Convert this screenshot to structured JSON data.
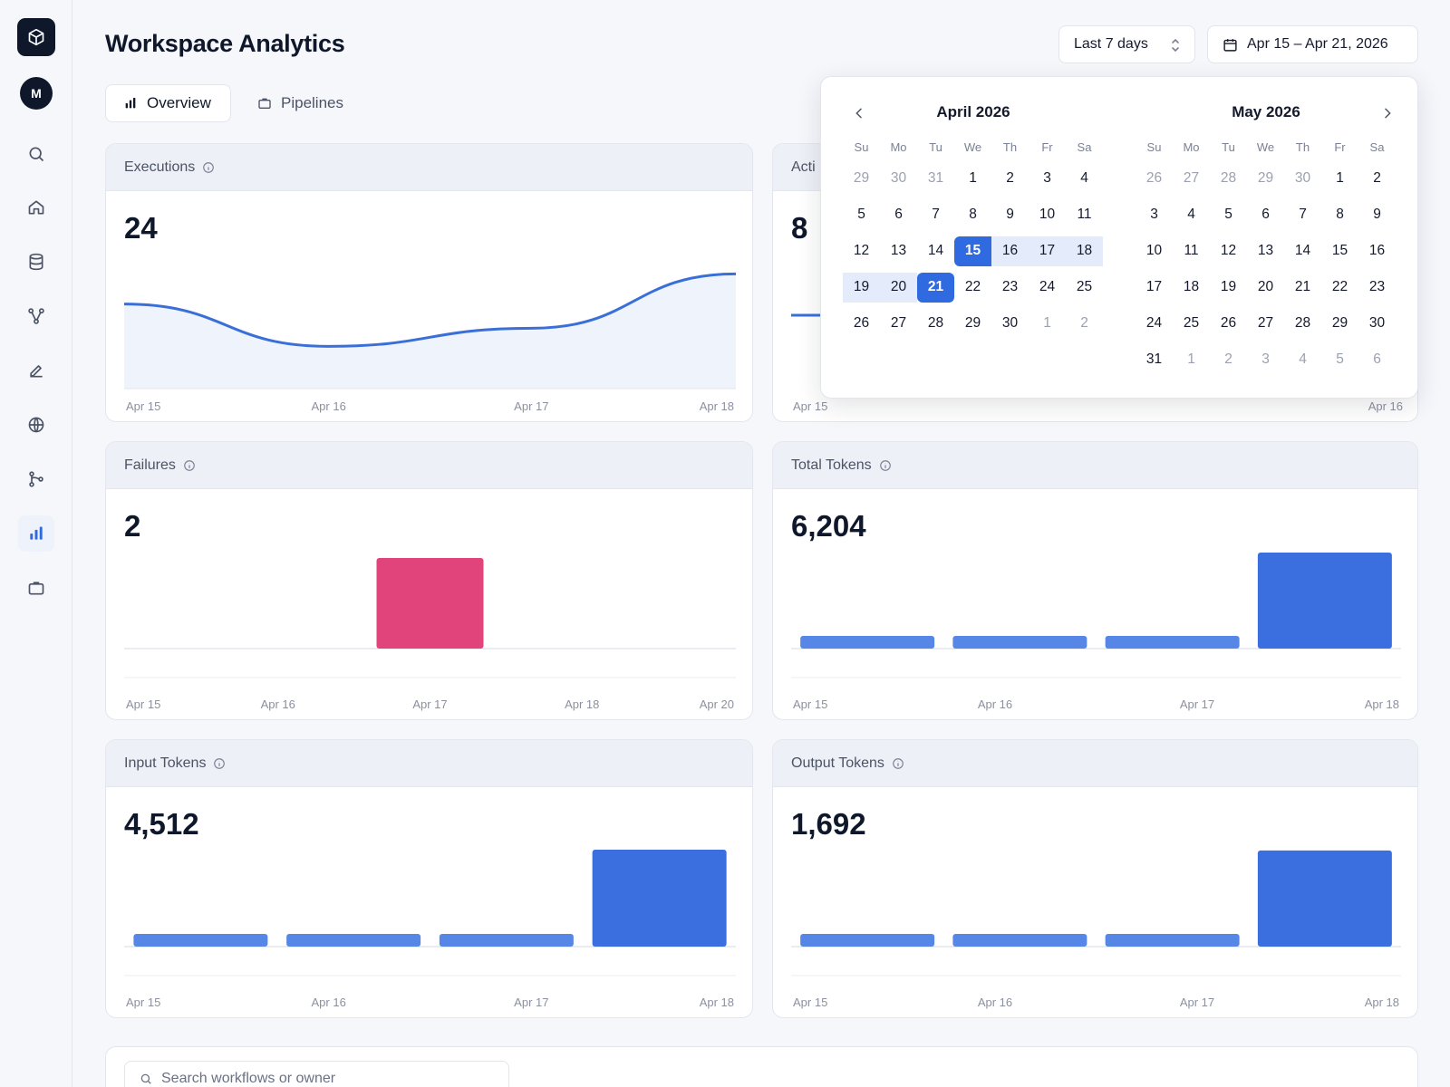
{
  "app": {
    "avatar_initial": "M",
    "title": "Workspace Analytics"
  },
  "sidebar": {
    "items": [
      {
        "name": "search-icon",
        "active": false
      },
      {
        "name": "home-icon",
        "active": false
      },
      {
        "name": "database-icon",
        "active": false
      },
      {
        "name": "workflow-icon",
        "active": false
      },
      {
        "name": "pen-icon",
        "active": false
      },
      {
        "name": "globe-icon",
        "active": false
      },
      {
        "name": "git-branch-icon",
        "active": false
      },
      {
        "name": "bar-chart-icon",
        "active": true
      },
      {
        "name": "briefcase-icon",
        "active": false
      }
    ]
  },
  "header": {
    "range_label": "Last 7 days",
    "date_range": "Apr 15 – Apr 21, 2026"
  },
  "tabs": [
    {
      "label": "Overview",
      "active": true
    },
    {
      "label": "Pipelines",
      "active": false
    }
  ],
  "colors": {
    "accent": "#2f6ae0",
    "line": "#3a6fd8",
    "bar": "#3b6fe0",
    "failure": "#e0447a"
  },
  "cards": {
    "executions": {
      "title": "Executions",
      "value": "24"
    },
    "active": {
      "title": "Acti",
      "value": "8"
    },
    "failures": {
      "title": "Failures",
      "value": "2"
    },
    "total_tokens": {
      "title": "Total Tokens",
      "value": "6,204"
    },
    "input_tokens": {
      "title": "Input Tokens",
      "value": "4,512"
    },
    "output_tokens": {
      "title": "Output Tokens",
      "value": "1,692"
    }
  },
  "calendar": {
    "weekdays": [
      "Su",
      "Mo",
      "Tu",
      "We",
      "Th",
      "Fr",
      "Sa"
    ],
    "selected_start": "15",
    "selected_end": "21",
    "months": [
      {
        "title": "April 2026",
        "days": [
          "29",
          "30",
          "31",
          "1",
          "2",
          "3",
          "4",
          "5",
          "6",
          "7",
          "8",
          "9",
          "10",
          "11",
          "12",
          "13",
          "14",
          "15",
          "16",
          "17",
          "18",
          "19",
          "20",
          "21",
          "22",
          "23",
          "24",
          "25",
          "26",
          "27",
          "28",
          "29",
          "30",
          "1",
          "2"
        ],
        "first_in": 3,
        "last_in": 32
      },
      {
        "title": "May 2026",
        "days": [
          "26",
          "27",
          "28",
          "29",
          "30",
          "1",
          "2",
          "3",
          "4",
          "5",
          "6",
          "7",
          "8",
          "9",
          "10",
          "11",
          "12",
          "13",
          "14",
          "15",
          "16",
          "17",
          "18",
          "19",
          "20",
          "21",
          "22",
          "23",
          "24",
          "25",
          "26",
          "27",
          "28",
          "29",
          "30",
          "31",
          "1",
          "2",
          "3",
          "4",
          "5",
          "6"
        ],
        "first_in": 5,
        "last_in": 35
      }
    ]
  },
  "search": {
    "placeholder": "Search workflows or owner"
  },
  "chart_data": [
    {
      "id": "executions",
      "type": "area",
      "title": "Executions",
      "x": [
        "Apr 15",
        "Apr 16",
        "Apr 17",
        "Apr 18"
      ],
      "values": [
        7,
        3.5,
        5,
        9.5
      ],
      "ylim": [
        0,
        12
      ],
      "xticks": [
        "Apr 15",
        "Apr 16",
        "Apr 17",
        "Apr 18"
      ]
    },
    {
      "id": "failures",
      "type": "bar",
      "title": "Failures",
      "categories": [
        "Apr 15",
        "Apr 16",
        "Apr 17",
        "Apr 18",
        "Apr 20"
      ],
      "values": [
        0,
        0,
        2,
        0,
        0
      ],
      "ylim": [
        0,
        2.2
      ],
      "xticks": [
        "Apr 15",
        "Apr 16",
        "Apr 17",
        "Apr 18",
        "Apr 20"
      ]
    },
    {
      "id": "total_tokens",
      "type": "bar",
      "title": "Total Tokens",
      "categories": [
        "Apr 15",
        "Apr 16",
        "Apr 17",
        "Apr 18"
      ],
      "values": [
        580,
        420,
        380,
        4820
      ],
      "ylim": [
        0,
        5000
      ],
      "xticks": [
        "Apr 15",
        "Apr 16",
        "Apr 17",
        "Apr 18"
      ]
    },
    {
      "id": "input_tokens",
      "type": "bar",
      "title": "Input Tokens",
      "categories": [
        "Apr 15",
        "Apr 16",
        "Apr 17",
        "Apr 18"
      ],
      "values": [
        420,
        300,
        260,
        3500
      ],
      "ylim": [
        0,
        3600
      ],
      "xticks": [
        "Apr 15",
        "Apr 16",
        "Apr 17",
        "Apr 18"
      ]
    },
    {
      "id": "output_tokens",
      "type": "bar",
      "title": "Output Tokens",
      "categories": [
        "Apr 15",
        "Apr 16",
        "Apr 17",
        "Apr 18"
      ],
      "values": [
        160,
        100,
        80,
        1350
      ],
      "ylim": [
        0,
        1400
      ],
      "xticks": [
        "Apr 15",
        "Apr 16",
        "Apr 17",
        "Apr 18"
      ]
    }
  ]
}
